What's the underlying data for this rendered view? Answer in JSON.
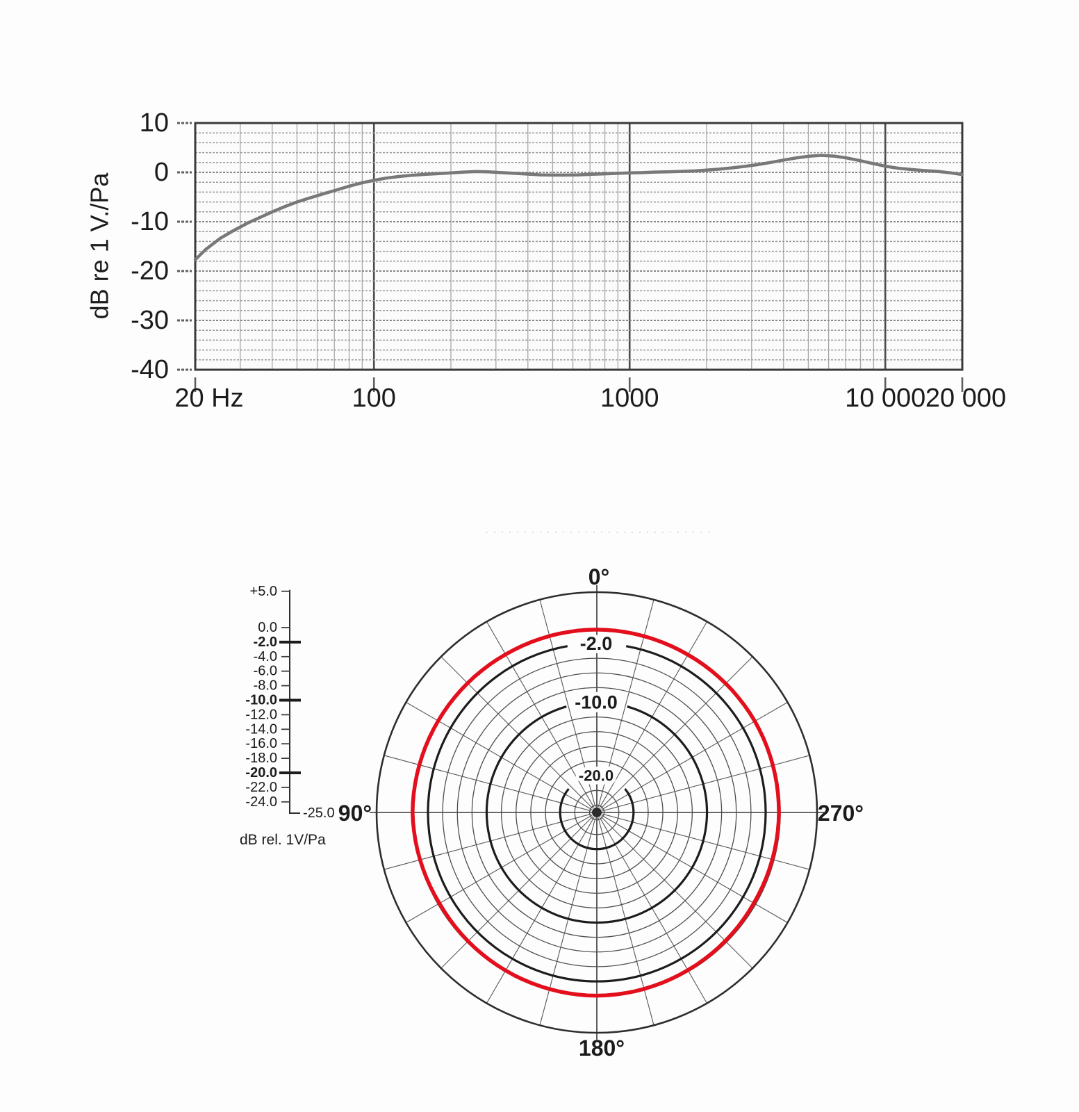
{
  "page": {
    "background": "#fdfdfd"
  },
  "chart_data": [
    {
      "type": "line",
      "id": "frequency-response",
      "title": "",
      "ylabel": "dB re 1 V./Pa",
      "ylim": [
        -40,
        10
      ],
      "yticks": [
        10,
        0,
        -10,
        -20,
        -30,
        -40
      ],
      "y_minor_step_db": 2,
      "x_scale": "log",
      "xlim_hz": [
        20,
        20000
      ],
      "xticks": [
        {
          "hz": 20,
          "label": "20 Hz"
        },
        {
          "hz": 100,
          "label": "100"
        },
        {
          "hz": 1000,
          "label": "1000"
        },
        {
          "hz": 10000,
          "label": "10 000"
        },
        {
          "hz": 20000,
          "label": "20 000"
        }
      ],
      "x_minor_gridlines_hz": [
        30,
        40,
        50,
        60,
        70,
        80,
        90,
        200,
        300,
        400,
        500,
        600,
        700,
        800,
        900,
        2000,
        3000,
        4000,
        5000,
        6000,
        7000,
        8000,
        9000
      ],
      "grid": true,
      "series": [
        {
          "name": "frequency-response-curve",
          "color": "#787878",
          "points": [
            [
              20,
              -17.7
            ],
            [
              22,
              -15.6
            ],
            [
              25,
              -13.4
            ],
            [
              28,
              -11.9
            ],
            [
              32,
              -10.3
            ],
            [
              36,
              -9.1
            ],
            [
              40,
              -8.0
            ],
            [
              45,
              -6.9
            ],
            [
              50,
              -6.0
            ],
            [
              56,
              -5.2
            ],
            [
              63,
              -4.4
            ],
            [
              71,
              -3.6
            ],
            [
              80,
              -2.8
            ],
            [
              90,
              -2.1
            ],
            [
              100,
              -1.6
            ],
            [
              112,
              -1.15
            ],
            [
              125,
              -0.85
            ],
            [
              140,
              -0.6
            ],
            [
              160,
              -0.4
            ],
            [
              180,
              -0.25
            ],
            [
              200,
              -0.1
            ],
            [
              224,
              0.05
            ],
            [
              250,
              0.15
            ],
            [
              280,
              0.1
            ],
            [
              315,
              -0.05
            ],
            [
              355,
              -0.2
            ],
            [
              400,
              -0.35
            ],
            [
              450,
              -0.5
            ],
            [
              500,
              -0.55
            ],
            [
              560,
              -0.55
            ],
            [
              630,
              -0.5
            ],
            [
              710,
              -0.4
            ],
            [
              800,
              -0.3
            ],
            [
              900,
              -0.2
            ],
            [
              1000,
              -0.1
            ],
            [
              1120,
              -0.05
            ],
            [
              1250,
              0.05
            ],
            [
              1400,
              0.1
            ],
            [
              1600,
              0.2
            ],
            [
              1800,
              0.3
            ],
            [
              2000,
              0.45
            ],
            [
              2240,
              0.65
            ],
            [
              2500,
              0.9
            ],
            [
              2800,
              1.2
            ],
            [
              3150,
              1.55
            ],
            [
              3550,
              2.0
            ],
            [
              4000,
              2.5
            ],
            [
              4500,
              2.95
            ],
            [
              5000,
              3.25
            ],
            [
              5600,
              3.45
            ],
            [
              6300,
              3.3
            ],
            [
              7100,
              2.9
            ],
            [
              8000,
              2.35
            ],
            [
              9000,
              1.75
            ],
            [
              10000,
              1.25
            ],
            [
              11200,
              0.85
            ],
            [
              12500,
              0.6
            ],
            [
              14000,
              0.4
            ],
            [
              16000,
              0.2
            ],
            [
              18000,
              -0.1
            ],
            [
              20000,
              -0.45
            ]
          ]
        }
      ]
    },
    {
      "type": "polar",
      "id": "polar-pattern",
      "outer_db": 5,
      "center_db": -25,
      "ring_step_db": 2,
      "rings_db": [
        0,
        -2,
        -4,
        -6,
        -8,
        -10,
        -12,
        -14,
        -16,
        -18,
        -20,
        -22,
        -24
      ],
      "bold_rings_db": [
        -2,
        -10,
        -20
      ],
      "ring_labels": [
        {
          "db": -2,
          "label": "-2.0"
        },
        {
          "db": -10,
          "label": "-10.0"
        },
        {
          "db": -20,
          "label": "-20.0"
        }
      ],
      "spoke_step_deg": 15,
      "angle_labels": [
        {
          "deg": 0,
          "label": "0°"
        },
        {
          "deg": 90,
          "label": "90°"
        },
        {
          "deg": 180,
          "label": "180°"
        },
        {
          "deg": 270,
          "label": "270°"
        }
      ],
      "scale": {
        "title": "dB rel. 1V/Pa",
        "ticks": [
          {
            "db": 5,
            "label": "+5.0",
            "bold": false
          },
          {
            "db": 0,
            "label": "0.0",
            "bold": false
          },
          {
            "db": -2,
            "label": "-2.0",
            "bold": true
          },
          {
            "db": -4,
            "label": "-4.0",
            "bold": false
          },
          {
            "db": -6,
            "label": "-6.0",
            "bold": false
          },
          {
            "db": -8,
            "label": "-8.0",
            "bold": false
          },
          {
            "db": -10,
            "label": "-10.0",
            "bold": true
          },
          {
            "db": -12,
            "label": "-12.0",
            "bold": false
          },
          {
            "db": -14,
            "label": "-14.0",
            "bold": false
          },
          {
            "db": -16,
            "label": "-16.0",
            "bold": false
          },
          {
            "db": -18,
            "label": "-18.0",
            "bold": false
          },
          {
            "db": -20,
            "label": "-20.0",
            "bold": true
          },
          {
            "db": -22,
            "label": "-22.0",
            "bold": false
          },
          {
            "db": -24,
            "label": "-24.0",
            "bold": false
          }
        ],
        "end_label": "-25.0"
      },
      "pattern": "omnidirectional",
      "curve_color": "#e30f1d",
      "curve_db_by_deg": [
        [
          0,
          -0.1
        ],
        [
          30,
          -0.2
        ],
        [
          60,
          -0.15
        ],
        [
          90,
          -0.2
        ],
        [
          120,
          -0.3
        ],
        [
          150,
          -0.2
        ],
        [
          180,
          -0.05
        ],
        [
          210,
          -0.15
        ],
        [
          240,
          -0.25
        ],
        [
          270,
          0.1
        ],
        [
          300,
          -0.05
        ],
        [
          330,
          -0.15
        ]
      ]
    }
  ]
}
